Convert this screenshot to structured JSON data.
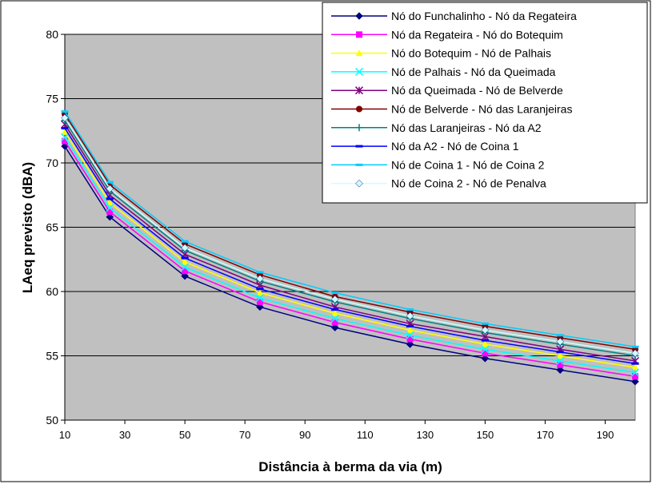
{
  "chart_data": {
    "type": "line",
    "title": "",
    "xlabel": "Distância à berma da via (m)",
    "ylabel": "LAeq previsto (dBA)",
    "x": [
      10,
      25,
      50,
      75,
      100,
      125,
      150,
      175,
      200
    ],
    "xlim": [
      10,
      200
    ],
    "ylim": [
      50,
      80
    ],
    "x_ticks": [
      10,
      30,
      50,
      70,
      90,
      110,
      130,
      150,
      170,
      190
    ],
    "y_ticks": [
      50,
      55,
      60,
      65,
      70,
      75,
      80
    ],
    "grid": "horizontal",
    "plot_background": "#c0c0c0",
    "legend_position": "top-right",
    "series": [
      {
        "name": "Nó do Funchalinho - Nó da Regateira",
        "color": "#000080",
        "marker": "diamond",
        "values": [
          71.3,
          65.8,
          61.2,
          58.8,
          57.2,
          55.9,
          54.8,
          53.9,
          53.0
        ]
      },
      {
        "name": "Nó da Regateira - Nó do Botequim",
        "color": "#ff00ff",
        "marker": "square",
        "values": [
          71.7,
          66.2,
          61.6,
          59.2,
          57.6,
          56.3,
          55.2,
          54.3,
          53.4
        ]
      },
      {
        "name": "Nó do Botequim - Nó de Palhais",
        "color": "#ffff00",
        "marker": "triangle",
        "values": [
          72.4,
          66.9,
          62.3,
          59.9,
          58.3,
          57.0,
          55.9,
          55.0,
          54.1
        ]
      },
      {
        "name": "Nó de Palhais - Nó da Queimada",
        "color": "#00ffff",
        "marker": "x",
        "values": [
          72.0,
          66.5,
          61.9,
          59.5,
          57.9,
          56.6,
          55.5,
          54.6,
          53.7
        ]
      },
      {
        "name": "Nó da Queimada - Nó de Belverde",
        "color": "#800080",
        "marker": "star",
        "values": [
          73.0,
          67.5,
          62.9,
          60.5,
          58.8,
          57.5,
          56.5,
          55.5,
          54.6
        ]
      },
      {
        "name": "Nó de Belverde - Nó das Laranjeiras",
        "color": "#800000",
        "marker": "circle",
        "values": [
          73.8,
          68.3,
          63.7,
          61.3,
          59.6,
          58.4,
          57.3,
          56.4,
          55.5
        ]
      },
      {
        "name": " Nó das Laranjeiras - Nó da A2",
        "color": "#008080",
        "marker": "plus",
        "values": [
          73.3,
          67.8,
          63.2,
          60.8,
          59.2,
          57.9,
          56.8,
          55.9,
          55.0
        ]
      },
      {
        "name": "Nó da A2 - Nó de Coina 1",
        "color": "#0000ff",
        "marker": "dash",
        "values": [
          72.7,
          67.2,
          62.6,
          60.2,
          58.6,
          57.3,
          56.2,
          55.3,
          54.4
        ]
      },
      {
        "name": "Nó de Coina 1 - Nó de Coina 2",
        "color": "#00ccff",
        "marker": "dash",
        "values": [
          74.0,
          68.5,
          63.9,
          61.5,
          59.9,
          58.6,
          57.5,
          56.6,
          55.7
        ]
      },
      {
        "name": "Nó de Coina 2 - Nó de Penalva",
        "color": "#ccffff",
        "marker": "diamond",
        "values": [
          73.5,
          68.0,
          63.4,
          61.0,
          59.4,
          58.1,
          57.0,
          56.1,
          55.2
        ]
      }
    ]
  }
}
